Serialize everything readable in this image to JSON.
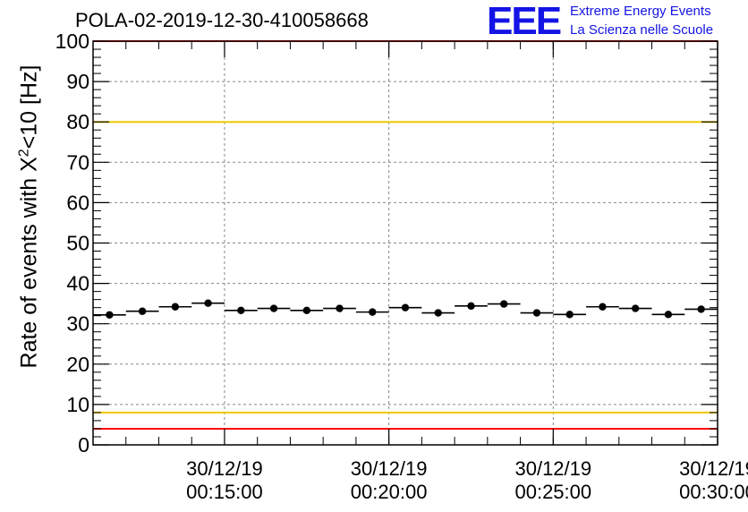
{
  "title": "POLA-02-2019-12-30-410058668",
  "logo": {
    "mark": "EEE",
    "line1": "Extreme Energy Events",
    "line2": "La Scienza nelle Scuole",
    "color": "#1414e6"
  },
  "chart_data": {
    "type": "scatter",
    "title": "POLA-02-2019-12-30-410058668",
    "xlabel": "",
    "ylabel_prefix": "Rate of events with X",
    "ylabel_sup": "2",
    "ylabel_suffix": "<10 [Hz]",
    "ylim": [
      0,
      100
    ],
    "y_ticks": [
      0,
      10,
      20,
      30,
      40,
      50,
      60,
      70,
      80,
      90,
      100
    ],
    "xlim": [
      "2019-12-30 00:11:00",
      "2019-12-30 00:30:00"
    ],
    "x_ticks": [
      {
        "t": "2019-12-30 00:15:00",
        "date": "30/12/19",
        "time": "00:15:00"
      },
      {
        "t": "2019-12-30 00:20:00",
        "date": "30/12/19",
        "time": "00:20:00"
      },
      {
        "t": "2019-12-30 00:25:00",
        "date": "30/12/19",
        "time": "00:25:00"
      },
      {
        "t": "2019-12-30 00:30:00",
        "date": "30/12/19",
        "time": "00:30:00"
      }
    ],
    "grid": true,
    "bin_width_minutes": 1,
    "points": [
      {
        "t": "2019-12-30 00:11:30",
        "y": 32.2
      },
      {
        "t": "2019-12-30 00:12:30",
        "y": 33.1
      },
      {
        "t": "2019-12-30 00:13:30",
        "y": 34.2
      },
      {
        "t": "2019-12-30 00:14:30",
        "y": 35.1
      },
      {
        "t": "2019-12-30 00:15:30",
        "y": 33.3
      },
      {
        "t": "2019-12-30 00:16:30",
        "y": 33.8
      },
      {
        "t": "2019-12-30 00:17:30",
        "y": 33.3
      },
      {
        "t": "2019-12-30 00:18:30",
        "y": 33.8
      },
      {
        "t": "2019-12-30 00:19:30",
        "y": 32.9
      },
      {
        "t": "2019-12-30 00:20:30",
        "y": 34.0
      },
      {
        "t": "2019-12-30 00:21:30",
        "y": 32.7
      },
      {
        "t": "2019-12-30 00:22:30",
        "y": 34.4
      },
      {
        "t": "2019-12-30 00:23:30",
        "y": 34.9
      },
      {
        "t": "2019-12-30 00:24:30",
        "y": 32.7
      },
      {
        "t": "2019-12-30 00:25:30",
        "y": 32.3
      },
      {
        "t": "2019-12-30 00:26:30",
        "y": 34.2
      },
      {
        "t": "2019-12-30 00:27:30",
        "y": 33.8
      },
      {
        "t": "2019-12-30 00:28:30",
        "y": 32.3
      },
      {
        "t": "2019-12-30 00:29:30",
        "y": 33.6
      }
    ],
    "reference_lines": [
      {
        "y": 100,
        "color": "#ff0000"
      },
      {
        "y": 80,
        "color": "#f0c800"
      },
      {
        "y": 8,
        "color": "#f0c800"
      },
      {
        "y": 4,
        "color": "#ff0000"
      }
    ]
  }
}
